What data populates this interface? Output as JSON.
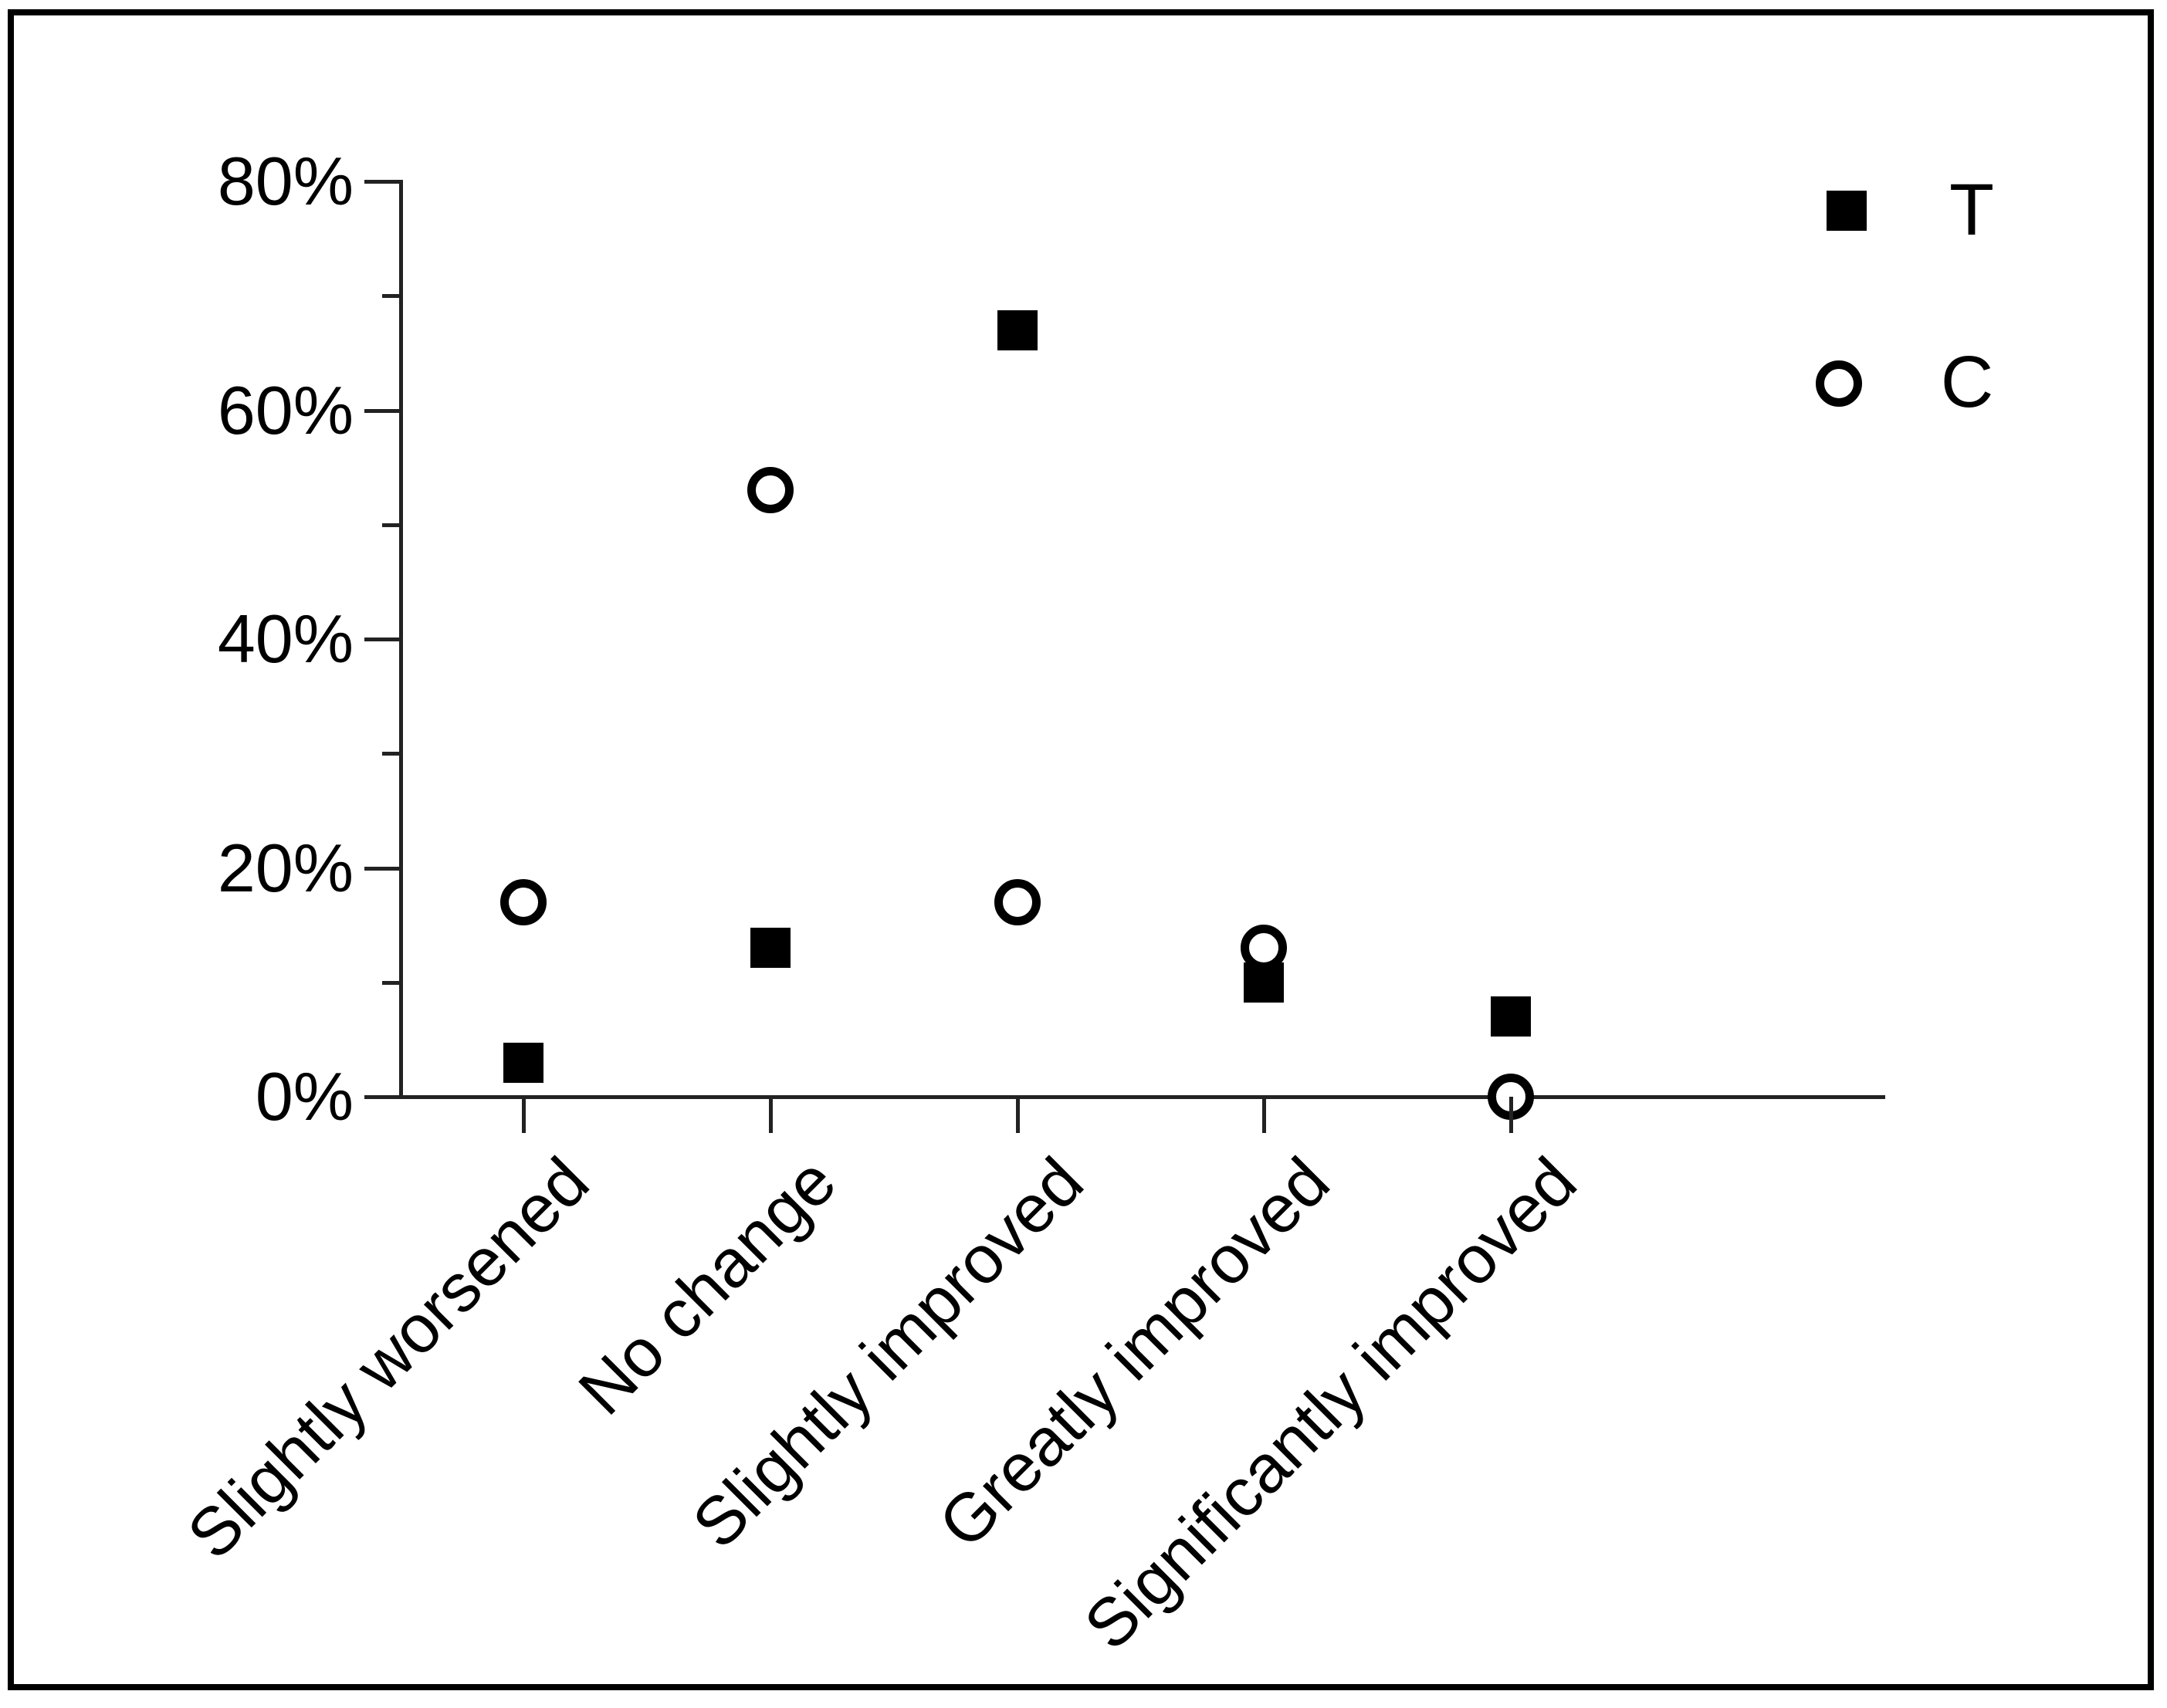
{
  "chart_data": {
    "type": "scatter",
    "title": "",
    "xlabel": "",
    "ylabel": "",
    "categories": [
      "Slightly worsened",
      "No change",
      "Slightly improved",
      "Greatly improved",
      "Significantly improved"
    ],
    "series": [
      {
        "name": "T",
        "marker": "filled-square",
        "values": [
          3,
          13,
          67,
          10,
          7
        ]
      },
      {
        "name": "C",
        "marker": "open-circle",
        "values": [
          17,
          53,
          17,
          13,
          0
        ]
      }
    ],
    "ylim": [
      0,
      80
    ],
    "y_major_step": 20,
    "y_minor_step": 10,
    "ytick_labels": [
      "0%",
      "20%",
      "40%",
      "60%",
      "80%"
    ],
    "grid": false,
    "legend_position": "top-right"
  },
  "colors": {
    "marker": "#000000",
    "axis": "#222222",
    "text": "#000000",
    "background": "#ffffff",
    "frame": "#000000"
  }
}
